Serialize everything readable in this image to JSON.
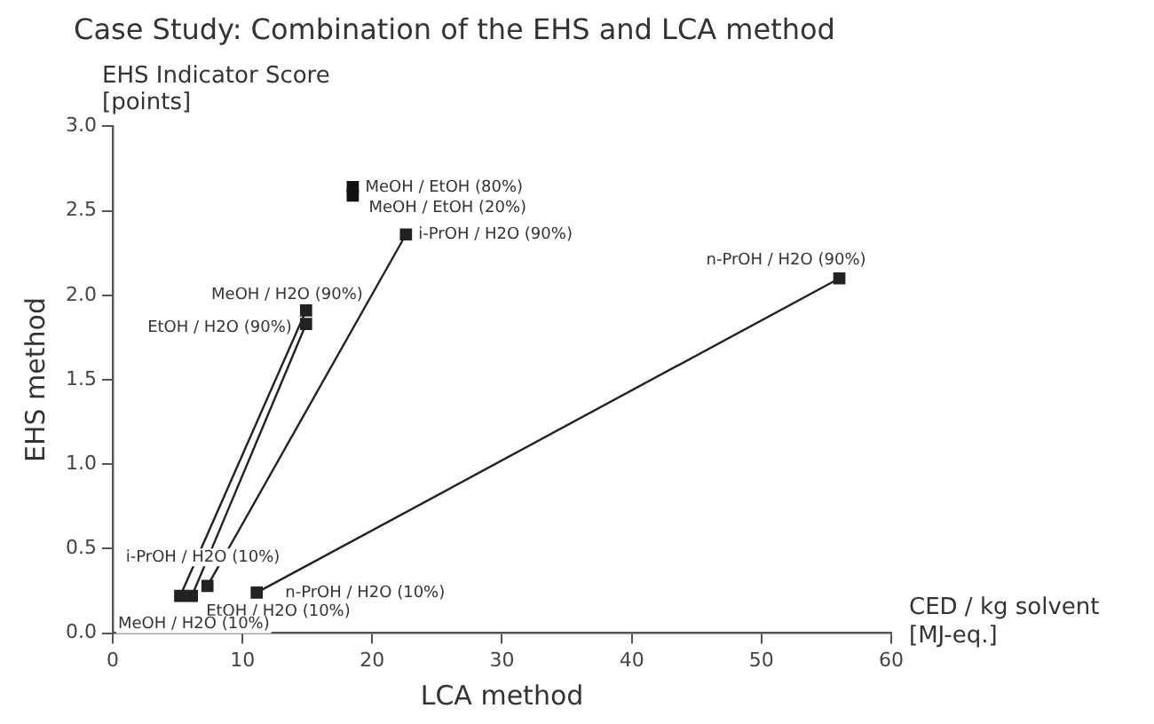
{
  "chart_data": {
    "type": "line",
    "title": "Case Study: Combination of the EHS and LCA method",
    "xlabel": "LCA method",
    "ylabel": "EHS method",
    "xlim": [
      0,
      60
    ],
    "xticks": [
      0,
      10,
      20,
      30,
      40,
      50,
      60
    ],
    "ylim": [
      0,
      3
    ],
    "yticks": [
      {
        "value": 0,
        "label": "0.0"
      },
      {
        "value": 0.5,
        "label": "0.5"
      },
      {
        "value": 1,
        "label": "1.0"
      },
      {
        "value": 1.5,
        "label": "1.5"
      },
      {
        "value": 2,
        "label": "2.0"
      },
      {
        "value": 2.5,
        "label": "2.5"
      },
      {
        "value": 3,
        "label": "3.0"
      }
    ],
    "grid": false,
    "legend": false,
    "marker": "square",
    "line_style": "solid",
    "series": [
      {
        "color": "#222222",
        "x": [
          5.2,
          14.9
        ],
        "values": [
          0.22,
          1.91
        ]
      },
      {
        "color": "#222222",
        "x": [
          6.1,
          14.9
        ],
        "values": [
          0.22,
          1.83
        ]
      },
      {
        "color": "#222222",
        "x": [
          7.3,
          22.6
        ],
        "values": [
          0.28,
          2.36
        ]
      },
      {
        "color": "#222222",
        "x": [
          11.1,
          56
        ],
        "values": [
          0.24,
          2.1
        ]
      },
      {
        "type": "scatter",
        "color": "#111111",
        "x": [
          18.5,
          18.5
        ],
        "values": [
          2.64,
          2.59
        ]
      }
    ],
    "annotations": [
      {
        "text": "MeOH / EtOH (80%)",
        "x": 18.5,
        "y": 2.64
      },
      {
        "text": "MeOH / EtOH (20%)",
        "x": 18.5,
        "y": 2.59
      },
      {
        "text": "i-PrOH / H2O (90%)",
        "x": 22.6,
        "y": 2.36
      },
      {
        "text": "MeOH / H2O (90%)",
        "x": 14.9,
        "y": 1.91
      },
      {
        "text": "EtOH / H2O (90%)",
        "x": 14.9,
        "y": 1.83
      },
      {
        "text": "n-PrOH / H2O (90%)",
        "x": 56,
        "y": 2.1
      },
      {
        "text": "i-PrOH / H2O (10%)",
        "x": 7.3,
        "y": 0.28
      },
      {
        "text": "n-PrOH / H2O (10%)",
        "x": 11.1,
        "y": 0.24
      },
      {
        "text": "EtOH / H2O (10%)",
        "x": 6.1,
        "y": 0.22
      },
      {
        "text": "MeOH / H2O (10%)",
        "x": 5.2,
        "y": 0.22
      },
      "EHS Indicator Score [points]",
      "CED / kg solvent [MJ-eq.]"
    ]
  }
}
